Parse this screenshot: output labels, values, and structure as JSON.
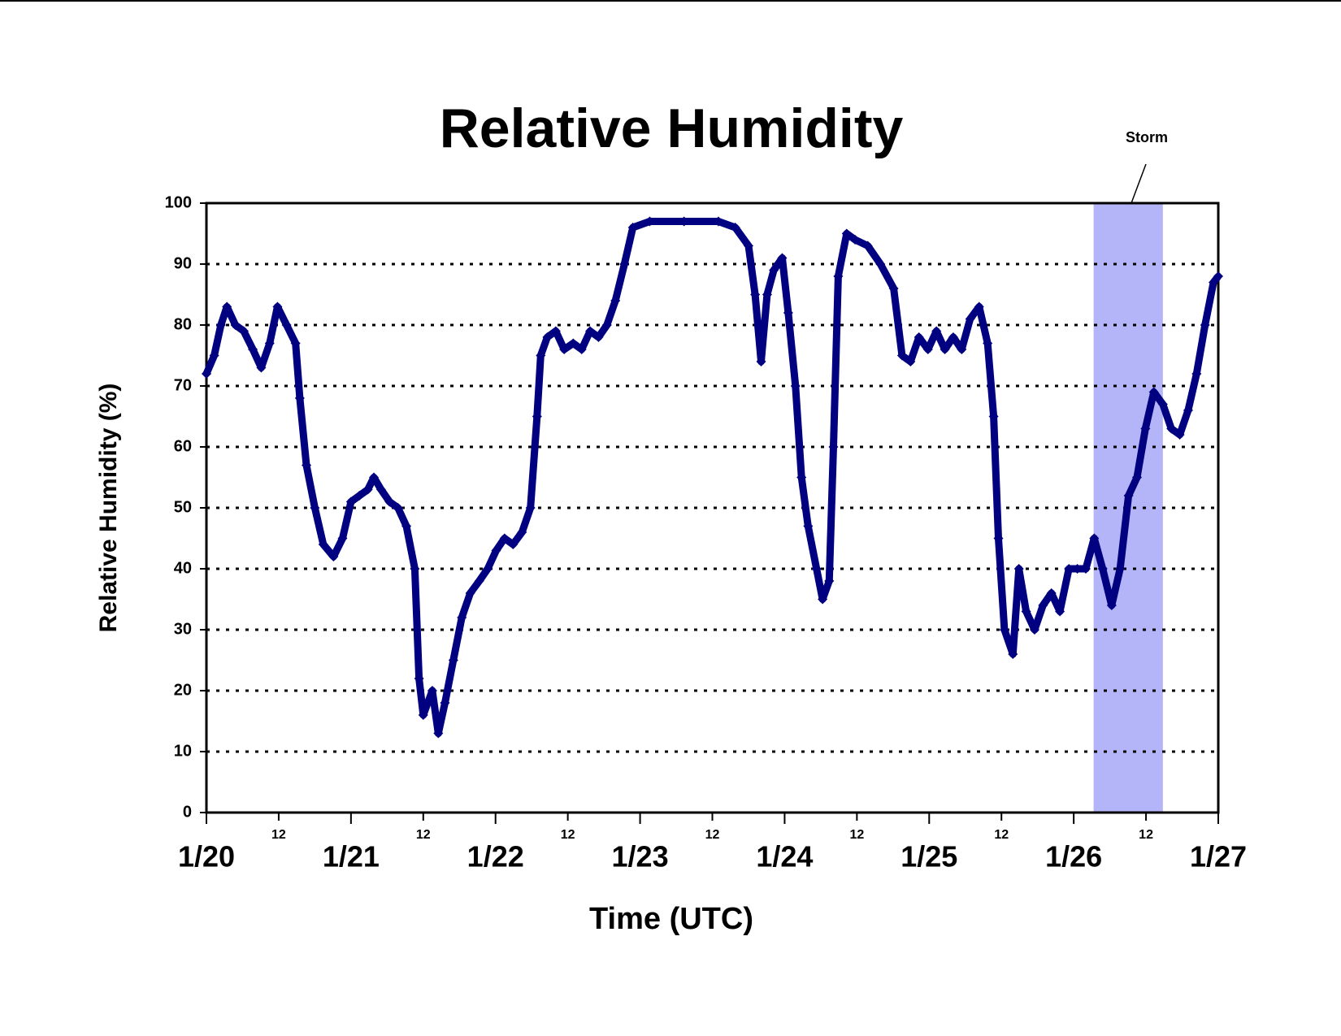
{
  "chart_data": {
    "type": "scatter",
    "title": "Relative Humidity",
    "x_label": "Time (UTC)",
    "y_label": "Relative Humidity (%)",
    "xlim": [
      0,
      168
    ],
    "ylim": [
      0,
      100
    ],
    "xticks": [
      {
        "value": 0,
        "label": "1/20"
      },
      {
        "value": 12,
        "label": "12"
      },
      {
        "value": 24,
        "label": "1/21"
      },
      {
        "value": 36,
        "label": "12"
      },
      {
        "value": 48,
        "label": "1/22"
      },
      {
        "value": 60,
        "label": "12"
      },
      {
        "value": 72,
        "label": "1/23"
      },
      {
        "value": 84,
        "label": "12"
      },
      {
        "value": 96,
        "label": "1/24"
      },
      {
        "value": 108,
        "label": "12"
      },
      {
        "value": 120,
        "label": "1/25"
      },
      {
        "value": 132,
        "label": "12"
      },
      {
        "value": 144,
        "label": "1/26"
      },
      {
        "value": 156,
        "label": "12"
      },
      {
        "value": 168,
        "label": "1/27"
      }
    ],
    "yticks": [
      0,
      10,
      20,
      30,
      40,
      50,
      60,
      70,
      80,
      90,
      100
    ],
    "grid": true,
    "shaded_region": {
      "label": "Storm",
      "x": [
        147.3,
        158.8
      ],
      "color": "#b4b4f8"
    },
    "series": [
      {
        "name": "Relative Humidity",
        "color": "#000080",
        "x": [
          0,
          1.3,
          2.4,
          3.4,
          4.8,
          6.2,
          7.7,
          9.1,
          10.5,
          11.8,
          13.3,
          14.8,
          15.5,
          16.6,
          18.0,
          19.4,
          21.1,
          22.6,
          24.0,
          25.4,
          26.8,
          27.8,
          29.0,
          30.4,
          31.8,
          33.2,
          34.6,
          35.3,
          36.0,
          37.5,
          38.5,
          39.6,
          41.0,
          42.4,
          43.8,
          45.3,
          46.7,
          48.1,
          49.5,
          50.9,
          52.4,
          53.8,
          54.9,
          55.5,
          56.6,
          58.0,
          59.4,
          60.9,
          62.3,
          63.7,
          65.1,
          66.5,
          67.9,
          69.4,
          70.8,
          73.6,
          79.3,
          85.0,
          87.8,
          90.0,
          91.1,
          92.1,
          93.1,
          94.2,
          95.6,
          96.6,
          97.8,
          98.8,
          99.9,
          101.3,
          102.3,
          103.4,
          104.1,
          104.9,
          106.3,
          107.7,
          109.8,
          111.9,
          114.1,
          115.5,
          116.9,
          118.3,
          119.8,
          121.2,
          122.6,
          124.0,
          125.4,
          126.8,
          128.3,
          129.7,
          130.7,
          131.5,
          132.5,
          133.9,
          134.9,
          136.1,
          137.5,
          138.9,
          140.3,
          141.7,
          143.2,
          144.6,
          146.0,
          147.4,
          148.8,
          150.3,
          151.7,
          153.1,
          154.5,
          155.9,
          157.3,
          158.8,
          160.2,
          161.6,
          163.0,
          164.4,
          165.8,
          167.2,
          168
        ],
        "values": [
          72,
          75,
          80,
          83,
          80,
          79,
          76,
          73,
          77,
          83,
          80,
          77,
          68,
          57,
          50,
          44,
          42,
          45,
          51,
          52,
          53,
          55,
          53,
          51,
          50,
          47,
          40,
          22,
          16,
          20,
          13,
          18,
          25,
          32,
          36,
          38,
          40,
          43,
          45,
          44,
          46,
          50,
          65,
          75,
          78,
          79,
          76,
          77,
          76,
          79,
          78,
          80,
          84,
          90,
          96,
          97,
          97,
          97,
          96,
          93,
          85,
          74,
          85,
          89,
          91,
          82,
          70,
          55,
          47,
          40,
          35,
          38,
          60,
          88,
          95,
          94,
          93,
          90,
          86,
          75,
          74,
          78,
          76,
          79,
          76,
          78,
          76,
          81,
          83,
          77,
          65,
          45,
          30,
          26,
          40,
          33,
          30,
          34,
          36,
          33,
          40,
          40,
          40,
          45,
          40,
          34,
          40,
          52,
          55,
          63,
          69,
          67,
          63,
          62,
          66,
          72,
          80,
          87,
          88
        ]
      }
    ]
  }
}
